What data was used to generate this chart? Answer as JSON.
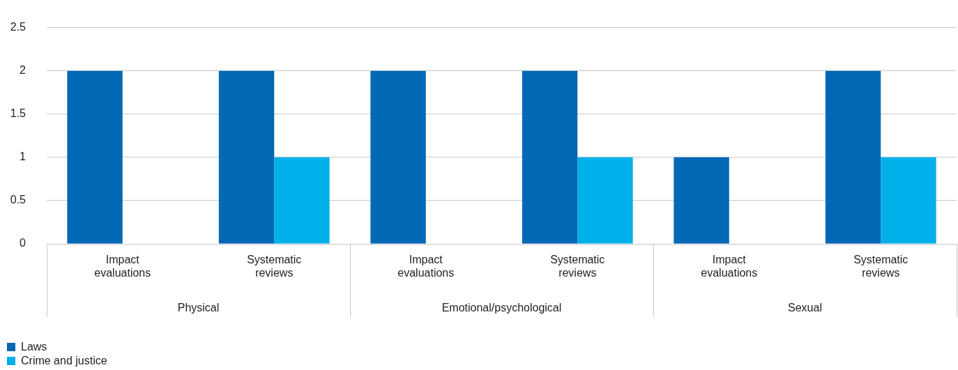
{
  "chart_data": {
    "type": "bar",
    "categories": [
      "Impact evaluations",
      "Systematic reviews",
      "Impact evaluations",
      "Systematic reviews",
      "Impact evaluations",
      "Systematic reviews"
    ],
    "series": [
      {
        "name": "Laws",
        "color": "#0068b4",
        "values": [
          2,
          2,
          2,
          2,
          1,
          2
        ]
      },
      {
        "name": "Crime and justice",
        "color": "#00b0ea",
        "values": [
          null,
          1,
          null,
          1,
          null,
          1
        ]
      }
    ],
    "annotations": [
      "Physical",
      "Emotional/psychological",
      "Sexual"
    ],
    "ylim": [
      0,
      2.5
    ],
    "yticks": [
      0,
      0.5,
      1,
      1.5,
      2,
      2.5
    ],
    "grid": "y",
    "legend": "bottom left"
  }
}
